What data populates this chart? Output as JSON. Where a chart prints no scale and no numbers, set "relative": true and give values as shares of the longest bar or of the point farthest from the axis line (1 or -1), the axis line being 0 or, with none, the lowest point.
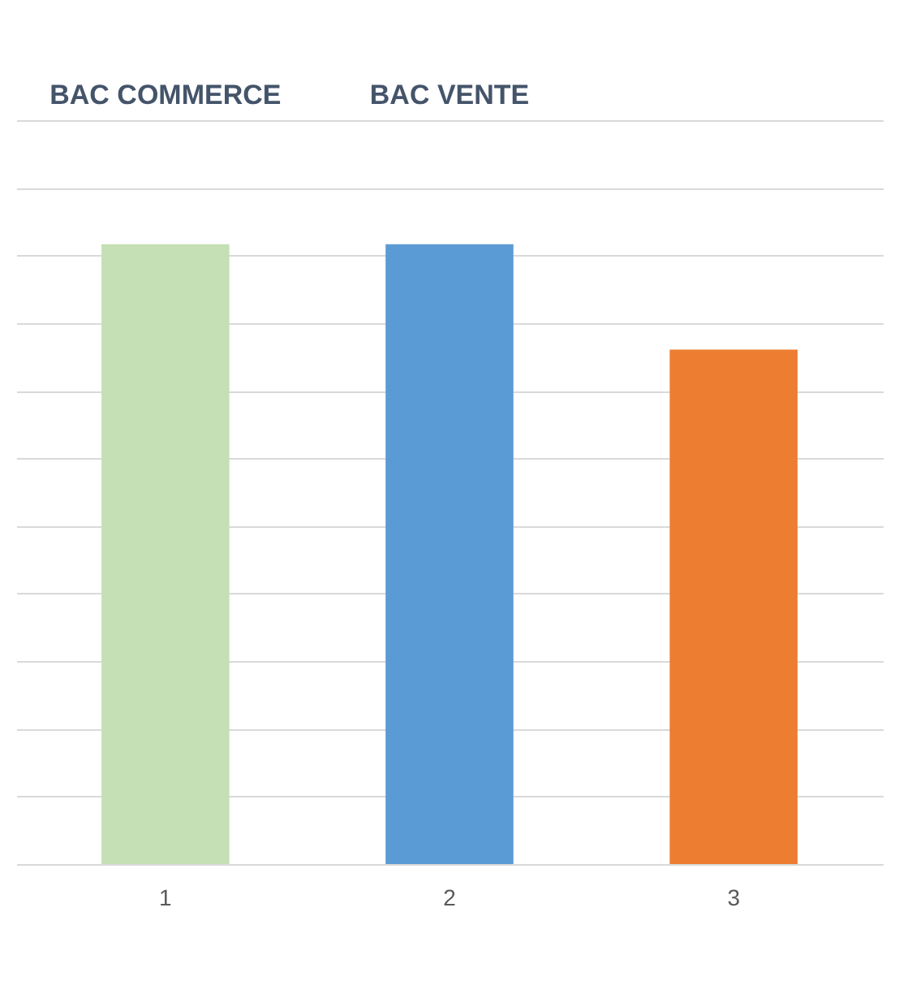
{
  "chart_data": {
    "type": "bar",
    "relative": true,
    "categories": [
      "1",
      "2",
      "3"
    ],
    "values": [
      1,
      1,
      0.83
    ],
    "colors": [
      "#c5e0b4",
      "#5b9bd5",
      "#ed7d31"
    ],
    "annotations": [
      "BAC COMMERCE",
      "BAC VENTE"
    ],
    "grid": "y"
  }
}
